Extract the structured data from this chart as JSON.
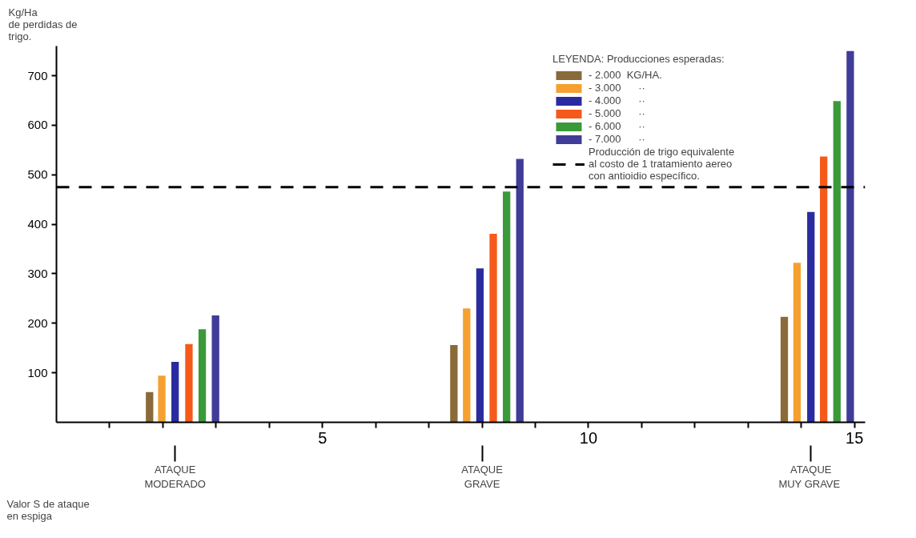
{
  "chart_data": {
    "type": "bar",
    "ylabel": "Kg/Ha\nde perdidas de\ntrigo.",
    "xlabel": "Valor S de ataque\nen espiga",
    "legend_title": "LEYENDA: Producciones esperadas:",
    "xlim": [
      0,
      15.2
    ],
    "ylim": [
      0,
      760
    ],
    "xticks": [
      {
        "value": 1,
        "label": null
      },
      {
        "value": 2,
        "label": null
      },
      {
        "value": 3,
        "label": null
      },
      {
        "value": 4,
        "label": null
      },
      5,
      {
        "value": 6,
        "label": null
      },
      {
        "value": 7,
        "label": null
      },
      {
        "value": 8,
        "label": null
      },
      {
        "value": 9,
        "label": null
      },
      10,
      {
        "value": 11,
        "label": null
      },
      {
        "value": 12,
        "label": null
      },
      {
        "value": 13,
        "label": null
      },
      {
        "value": 14,
        "label": null
      },
      15
    ],
    "yticks": [
      100,
      200,
      300,
      400,
      500,
      600,
      700
    ],
    "grid": false,
    "legend": "top right",
    "series": [
      {
        "name": "- 2.000  KG/HA.",
        "color": "#8a6a3a",
        "x": [
          1.75,
          7.47,
          13.68
        ],
        "values": [
          61,
          156,
          213
        ]
      },
      {
        "name": "- 3.000      ··",
        "color": "#f5a030",
        "x": [
          1.98,
          7.71,
          13.92
        ],
        "values": [
          94,
          230,
          322
        ]
      },
      {
        "name": "- 4.000      ··",
        "color": "#2b2ba0",
        "x": [
          2.23,
          7.96,
          14.18
        ],
        "values": [
          122,
          311,
          425
        ]
      },
      {
        "name": "- 5.000      ··",
        "color": "#f55a1a",
        "x": [
          2.49,
          8.21,
          14.42
        ],
        "values": [
          158,
          381,
          537
        ]
      },
      {
        "name": "- 6.000      ··",
        "color": "#3a9a3a",
        "x": [
          2.74,
          8.46,
          14.67
        ],
        "values": [
          188,
          466,
          649
        ]
      },
      {
        "name": "- 7.000      ··",
        "color": "#403c98",
        "x": [
          2.99,
          8.71,
          14.92
        ],
        "values": [
          216,
          532,
          750
        ]
      }
    ],
    "ref_lines": [
      {
        "axis": "y",
        "value": 475,
        "label": "Producción de trigo equivalente\nal costo de 1 tratamiento aereo\ncon antioidio específico.",
        "color": "#000000",
        "line_style": "dashed"
      }
    ],
    "annotations": [
      {
        "text": "ATAQUE\nMODERADO",
        "x": 2.23
      },
      {
        "text": "ATAQUE\nGRAVE",
        "x": 8.0
      },
      {
        "text": "ATAQUE\nMUY  GRAVE",
        "x": 14.18
      }
    ]
  }
}
